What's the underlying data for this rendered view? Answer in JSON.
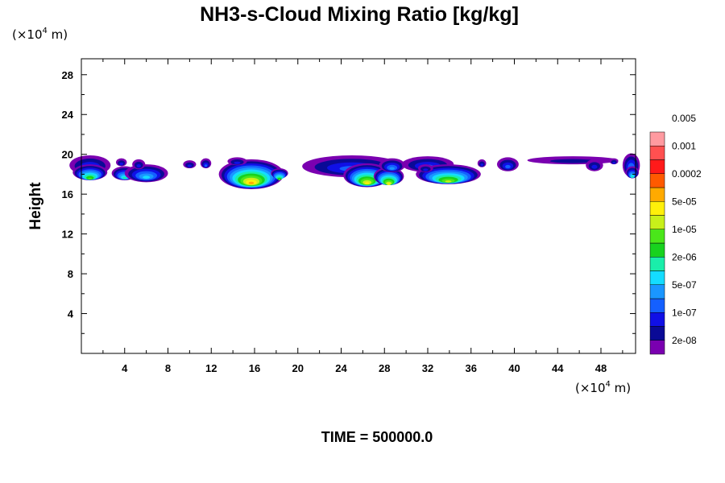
{
  "chart_data": {
    "type": "contour",
    "title": "NH3-s-Cloud Mixing Ratio [kg/kg]",
    "ylabel": "Height",
    "y_unit": {
      "prefix": "(×10",
      "exp": "4",
      "suffix": " m)"
    },
    "x_unit": {
      "prefix": "(×10",
      "exp": "4",
      "suffix": " m)"
    },
    "xlim": [
      0,
      51.2
    ],
    "ylim": [
      0,
      29.6
    ],
    "x_ticks": [
      "4",
      "8",
      "12",
      "16",
      "20",
      "24",
      "28",
      "32",
      "36",
      "40",
      "44",
      "48"
    ],
    "y_ticks": [
      "4",
      "8",
      "12",
      "16",
      "20",
      "24",
      "28"
    ],
    "colorbar": {
      "colors": [
        "#7a00b0",
        "#0a0a96",
        "#1010e6",
        "#1460ff",
        "#1a96ff",
        "#14dcff",
        "#1aeeaa",
        "#18d21e",
        "#4ae61a",
        "#c8f01a",
        "#fff00a",
        "#ffaa00",
        "#ff5a00",
        "#ff1a1a",
        "#ff5050",
        "#ff9aa0"
      ],
      "labels": [
        "2e-08",
        "1e-07",
        "5e-07",
        "2e-06",
        "1e-05",
        "5e-05",
        "0.0002",
        "0.001",
        "0.005"
      ]
    },
    "clouds": [
      {
        "x": 0.8,
        "y": 18.9,
        "w": 1.9,
        "h": 1.0,
        "level": 3
      },
      {
        "x": 0.8,
        "y": 18.2,
        "w": 1.6,
        "h": 0.8,
        "level": 8
      },
      {
        "x": 4.0,
        "y": 18.1,
        "w": 1.2,
        "h": 0.7,
        "level": 6
      },
      {
        "x": 6.0,
        "y": 18.1,
        "w": 2.0,
        "h": 0.9,
        "level": 5
      },
      {
        "x": 5.3,
        "y": 19.0,
        "w": 0.6,
        "h": 0.5,
        "level": 2
      },
      {
        "x": 3.7,
        "y": 19.2,
        "w": 0.5,
        "h": 0.4,
        "level": 2
      },
      {
        "x": 10.0,
        "y": 19.0,
        "w": 0.6,
        "h": 0.4,
        "level": 2
      },
      {
        "x": 11.5,
        "y": 19.1,
        "w": 0.5,
        "h": 0.5,
        "level": 3
      },
      {
        "x": 15.7,
        "y": 18.0,
        "w": 3.0,
        "h": 1.5,
        "level": 11
      },
      {
        "x": 14.4,
        "y": 19.3,
        "w": 0.9,
        "h": 0.4,
        "level": 2
      },
      {
        "x": 18.3,
        "y": 18.1,
        "w": 0.8,
        "h": 0.5,
        "level": 8
      },
      {
        "x": 25.0,
        "y": 18.8,
        "w": 4.6,
        "h": 1.1,
        "level": 3
      },
      {
        "x": 26.4,
        "y": 17.9,
        "w": 2.2,
        "h": 1.2,
        "level": 10
      },
      {
        "x": 28.4,
        "y": 17.8,
        "w": 1.4,
        "h": 0.9,
        "level": 10
      },
      {
        "x": 28.7,
        "y": 18.9,
        "w": 1.2,
        "h": 0.7,
        "level": 4
      },
      {
        "x": 32.0,
        "y": 19.0,
        "w": 2.4,
        "h": 0.8,
        "level": 3
      },
      {
        "x": 33.9,
        "y": 18.0,
        "w": 3.0,
        "h": 1.0,
        "level": 9
      },
      {
        "x": 31.8,
        "y": 18.6,
        "w": 0.7,
        "h": 0.4,
        "level": 2
      },
      {
        "x": 37.0,
        "y": 19.1,
        "w": 0.4,
        "h": 0.4,
        "level": 2
      },
      {
        "x": 39.4,
        "y": 19.0,
        "w": 1.0,
        "h": 0.7,
        "level": 3
      },
      {
        "x": 45.4,
        "y": 19.4,
        "w": 4.2,
        "h": 0.4,
        "level": 1
      },
      {
        "x": 47.4,
        "y": 18.9,
        "w": 0.8,
        "h": 0.6,
        "level": 2
      },
      {
        "x": 50.8,
        "y": 18.9,
        "w": 0.8,
        "h": 1.2,
        "level": 4
      },
      {
        "x": 50.9,
        "y": 18.2,
        "w": 0.6,
        "h": 0.6,
        "level": 6
      },
      {
        "x": 49.2,
        "y": 19.3,
        "w": 0.4,
        "h": 0.3,
        "level": 2
      }
    ]
  },
  "footer": {
    "time_label": "TIME = 500000.0"
  }
}
